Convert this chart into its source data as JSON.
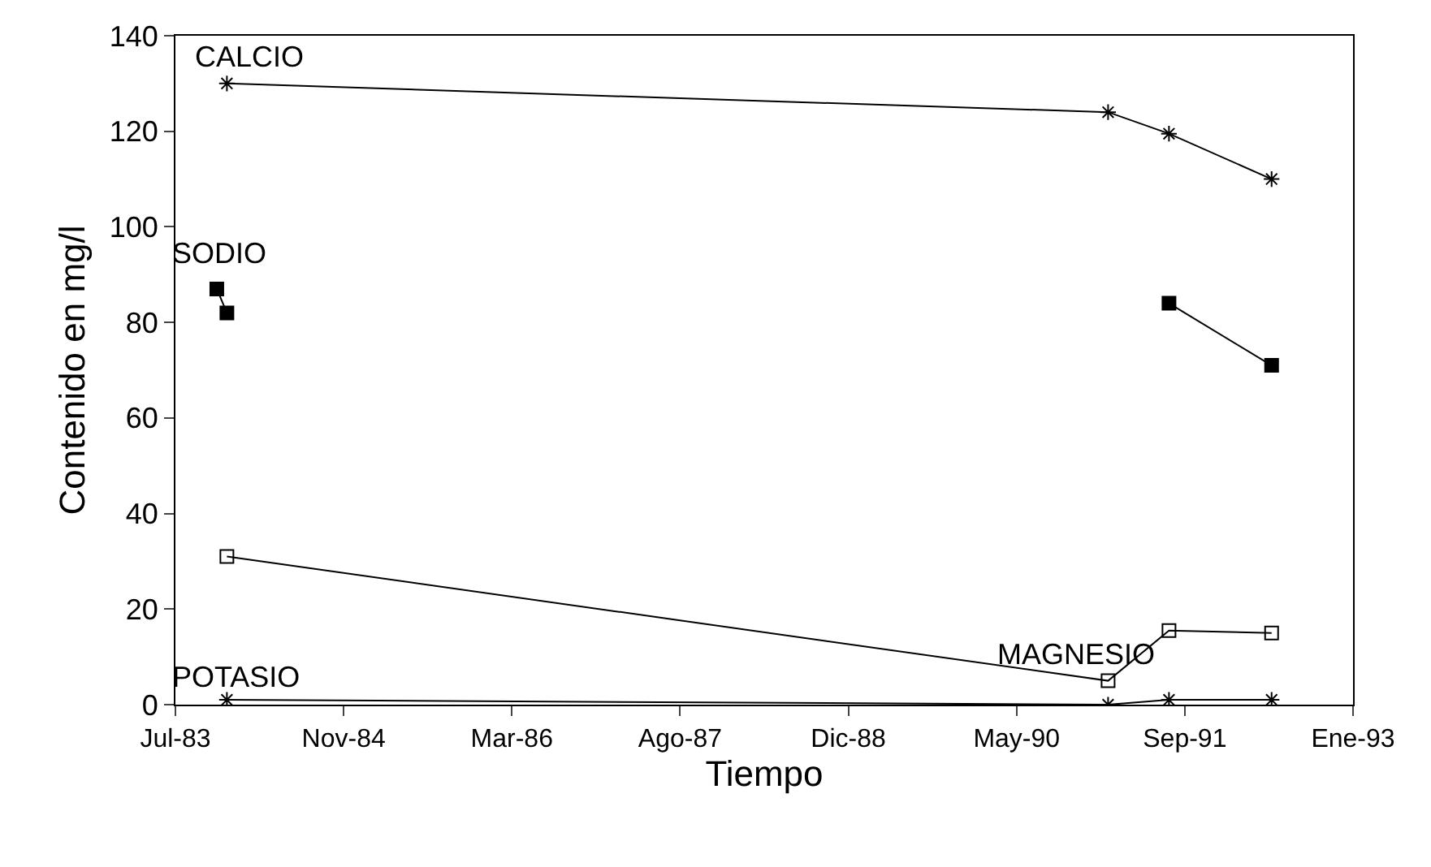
{
  "chart_data": {
    "type": "line",
    "xlabel": "Tiempo",
    "ylabel": "Contenido en mg/l",
    "xlim": [
      "1983-07-01",
      "1993-01-29"
    ],
    "xticks": [
      {
        "value": "1983-07-01",
        "label": "Jul-83"
      },
      {
        "value": "1984-11-12",
        "label": "Nov-84"
      },
      {
        "value": "1986-03-27",
        "label": "Mar-86"
      },
      {
        "value": "1987-08-09",
        "label": "Ago-87"
      },
      {
        "value": "1988-12-21",
        "label": "Dic-88"
      },
      {
        "value": "1990-05-05",
        "label": "May-90"
      },
      {
        "value": "1991-09-17",
        "label": "Sep-91"
      },
      {
        "value": "1993-01-29",
        "label": "Ene-93"
      }
    ],
    "ylim": [
      0,
      140
    ],
    "yticks": [
      0,
      20,
      40,
      60,
      80,
      100,
      120,
      140
    ],
    "grid": false,
    "legend": false,
    "series": [
      {
        "name": "CALCIO",
        "color": "#000000",
        "marker": "cross",
        "x": [
          "1983-12",
          "1991-02",
          "1991-08",
          "1992-06"
        ],
        "values": [
          130,
          124,
          119.5,
          110
        ]
      },
      {
        "name": "SODIO",
        "color": "#000000",
        "marker": "square",
        "x": [
          "1983-11",
          "1983-12",
          "1988-01",
          "1991-08",
          "1992-06"
        ],
        "values": [
          87,
          82,
          null,
          84,
          71
        ]
      },
      {
        "name": "MAGNESIO",
        "color": "#000000",
        "marker": "square-open",
        "x": [
          "1983-12",
          "1991-02",
          "1991-08",
          "1992-06"
        ],
        "values": [
          31,
          5,
          15.5,
          15
        ]
      },
      {
        "name": "POTASIO",
        "color": "#000000",
        "marker": "cross",
        "x": [
          "1983-12",
          "1991-02",
          "1991-08",
          "1992-06"
        ],
        "values": [
          1,
          0,
          1,
          1
        ]
      }
    ]
  }
}
